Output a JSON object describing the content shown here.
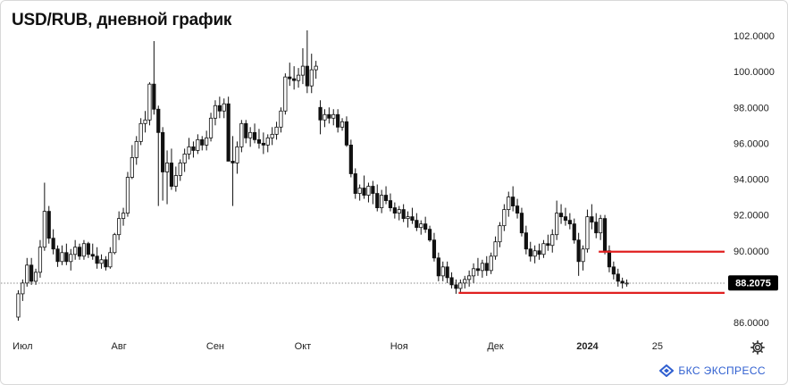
{
  "title": "USD/RUB, дневной график",
  "chart_data": {
    "type": "candlestick",
    "title": "USD/RUB, дневной график",
    "ylim": [
      85.5,
      103.0
    ],
    "y_ticks": [
      "102.0000",
      "100.0000",
      "98.0000",
      "96.0000",
      "94.0000",
      "92.0000",
      "90.0000",
      "86.0000"
    ],
    "y_tick_values": [
      102,
      100,
      98,
      96,
      94,
      92,
      90,
      86
    ],
    "x_ticks": [
      {
        "label": "Июл",
        "index": 1,
        "bold": false
      },
      {
        "label": "Авг",
        "index": 23,
        "bold": false
      },
      {
        "label": "Сен",
        "index": 45,
        "bold": false
      },
      {
        "label": "Окт",
        "index": 65,
        "bold": false
      },
      {
        "label": "Ноя",
        "index": 87,
        "bold": false
      },
      {
        "label": "Дек",
        "index": 109,
        "bold": false
      },
      {
        "label": "2024",
        "index": 130,
        "bold": true
      },
      {
        "label": "25",
        "index": 146,
        "bold": false
      }
    ],
    "grid": false,
    "last_price": 88.2075,
    "last_price_label": "88.2075",
    "colors": {
      "up": "#ffffff",
      "down": "#111111",
      "wick": "#111111",
      "levels": "#e02020",
      "price_label_bg": "#000000"
    },
    "horizontal_levels": [
      {
        "value": 89.95,
        "from_index": 133,
        "to_index": 146
      },
      {
        "value": 87.65,
        "from_index": 101,
        "to_index": 146
      }
    ],
    "candles": [
      [
        86.3,
        87.8,
        86.1,
        87.6
      ],
      [
        87.6,
        88.4,
        87.2,
        88.2
      ],
      [
        88.2,
        89.6,
        88.0,
        89.2
      ],
      [
        89.2,
        89.6,
        88.1,
        88.3
      ],
      [
        88.3,
        89.0,
        88.1,
        88.8
      ],
      [
        88.8,
        90.6,
        88.5,
        90.2
      ],
      [
        90.2,
        93.8,
        90.0,
        92.2
      ],
      [
        92.2,
        92.5,
        90.4,
        90.7
      ],
      [
        90.7,
        91.2,
        89.8,
        90.1
      ],
      [
        90.1,
        90.3,
        89.1,
        89.4
      ],
      [
        89.4,
        90.3,
        89.2,
        89.9
      ],
      [
        89.9,
        90.4,
        89.2,
        89.4
      ],
      [
        89.4,
        90.1,
        88.9,
        89.8
      ],
      [
        89.8,
        90.6,
        89.5,
        90.2
      ],
      [
        90.2,
        90.4,
        89.5,
        89.7
      ],
      [
        89.7,
        90.6,
        89.5,
        90.4
      ],
      [
        90.4,
        90.5,
        89.6,
        89.8
      ],
      [
        89.8,
        90.4,
        89.5,
        89.7
      ],
      [
        89.7,
        90.2,
        89.0,
        89.3
      ],
      [
        89.3,
        89.8,
        89.0,
        89.5
      ],
      [
        89.5,
        89.7,
        88.9,
        89.1
      ],
      [
        89.1,
        90.2,
        89.0,
        89.9
      ],
      [
        89.9,
        91.0,
        89.8,
        90.9
      ],
      [
        90.9,
        92.2,
        90.6,
        91.8
      ],
      [
        91.8,
        92.4,
        91.4,
        92.1
      ],
      [
        92.1,
        94.4,
        91.9,
        94.1
      ],
      [
        94.1,
        95.9,
        94.0,
        95.2
      ],
      [
        95.2,
        96.4,
        94.8,
        96.1
      ],
      [
        96.1,
        97.4,
        95.9,
        97.1
      ],
      [
        97.1,
        97.8,
        96.6,
        97.3
      ],
      [
        97.3,
        99.4,
        97.0,
        99.3
      ],
      [
        99.3,
        101.7,
        97.6,
        97.9
      ],
      [
        97.9,
        98.1,
        92.5,
        96.6
      ],
      [
        96.6,
        96.9,
        92.8,
        94.4
      ],
      [
        94.4,
        95.6,
        92.6,
        94.9
      ],
      [
        94.9,
        95.7,
        93.4,
        93.6
      ],
      [
        93.6,
        94.7,
        93.3,
        94.2
      ],
      [
        94.2,
        95.1,
        93.9,
        94.9
      ],
      [
        94.9,
        95.7,
        94.4,
        95.4
      ],
      [
        95.4,
        96.3,
        95.1,
        95.8
      ],
      [
        95.8,
        96.1,
        95.2,
        95.6
      ],
      [
        95.6,
        96.5,
        95.4,
        96.2
      ],
      [
        96.2,
        96.4,
        95.6,
        95.9
      ],
      [
        95.9,
        96.7,
        95.6,
        96.3
      ],
      [
        96.3,
        97.7,
        96.1,
        97.4
      ],
      [
        97.4,
        98.4,
        97.0,
        98.1
      ],
      [
        98.1,
        98.6,
        97.4,
        97.8
      ],
      [
        97.8,
        98.5,
        97.4,
        98.2
      ],
      [
        98.2,
        98.6,
        95.0,
        95.0
      ],
      [
        95.0,
        96.4,
        92.5,
        94.9
      ],
      [
        94.9,
        96.1,
        94.3,
        95.8
      ],
      [
        95.8,
        97.3,
        95.5,
        97.1
      ],
      [
        97.1,
        97.3,
        96.0,
        96.3
      ],
      [
        96.3,
        96.9,
        95.8,
        96.6
      ],
      [
        96.6,
        97.1,
        96.0,
        96.2
      ],
      [
        96.2,
        96.8,
        95.7,
        96.0
      ],
      [
        96.0,
        96.6,
        95.4,
        95.9
      ],
      [
        95.9,
        96.5,
        95.5,
        96.3
      ],
      [
        96.3,
        96.9,
        95.9,
        96.5
      ],
      [
        96.5,
        97.2,
        96.2,
        96.9
      ],
      [
        96.9,
        98.0,
        96.6,
        97.8
      ],
      [
        97.8,
        99.9,
        97.6,
        99.7
      ],
      [
        99.7,
        100.5,
        99.2,
        99.6
      ],
      [
        99.6,
        100.3,
        99.0,
        99.5
      ],
      [
        99.5,
        100.2,
        99.1,
        99.8
      ],
      [
        99.8,
        101.3,
        99.3,
        100.3
      ],
      [
        100.3,
        102.3,
        98.8,
        99.2
      ],
      [
        99.2,
        101.0,
        98.8,
        100.1
      ],
      [
        100.1,
        100.6,
        99.6,
        100.3
      ],
      [
        98.0,
        98.4,
        96.5,
        97.3
      ],
      [
        97.3,
        97.9,
        96.9,
        97.6
      ],
      [
        97.6,
        98.0,
        97.1,
        97.4
      ],
      [
        97.4,
        97.9,
        97.0,
        97.6
      ],
      [
        97.6,
        97.9,
        96.6,
        96.9
      ],
      [
        96.9,
        97.4,
        96.7,
        97.2
      ],
      [
        97.2,
        97.5,
        95.8,
        95.9
      ],
      [
        95.9,
        96.2,
        94.1,
        94.3
      ],
      [
        94.3,
        94.6,
        92.9,
        93.2
      ],
      [
        93.2,
        93.7,
        92.8,
        93.5
      ],
      [
        93.5,
        94.2,
        92.9,
        93.1
      ],
      [
        93.1,
        93.8,
        92.7,
        93.6
      ],
      [
        93.6,
        93.9,
        92.6,
        93.2
      ],
      [
        93.2,
        93.7,
        92.2,
        92.4
      ],
      [
        92.4,
        93.4,
        92.1,
        93.1
      ],
      [
        93.1,
        93.6,
        92.6,
        92.8
      ],
      [
        92.8,
        93.2,
        92.2,
        92.4
      ],
      [
        92.4,
        92.7,
        91.8,
        92.1
      ],
      [
        92.1,
        92.5,
        91.7,
        92.3
      ],
      [
        92.3,
        92.6,
        91.6,
        91.8
      ],
      [
        91.8,
        92.2,
        91.3,
        91.9
      ],
      [
        91.9,
        92.4,
        91.5,
        91.7
      ],
      [
        91.7,
        92.1,
        91.1,
        91.3
      ],
      [
        91.3,
        91.7,
        90.9,
        91.5
      ],
      [
        91.5,
        91.9,
        91.0,
        91.2
      ],
      [
        91.2,
        91.4,
        90.5,
        90.6
      ],
      [
        90.6,
        91.0,
        89.4,
        89.6
      ],
      [
        89.6,
        89.9,
        88.3,
        88.6
      ],
      [
        88.6,
        89.4,
        88.3,
        89.1
      ],
      [
        89.1,
        89.4,
        88.2,
        88.5
      ],
      [
        88.5,
        88.8,
        87.9,
        88.1
      ],
      [
        88.1,
        88.4,
        87.6,
        87.9
      ],
      [
        87.9,
        88.4,
        87.6,
        88.2
      ],
      [
        88.2,
        88.6,
        87.9,
        88.4
      ],
      [
        88.4,
        88.9,
        88.0,
        88.6
      ],
      [
        88.6,
        89.3,
        88.2,
        89.0
      ],
      [
        89.0,
        89.6,
        88.6,
        88.9
      ],
      [
        88.9,
        89.5,
        88.5,
        89.3
      ],
      [
        89.3,
        89.7,
        88.6,
        88.9
      ],
      [
        88.9,
        89.9,
        88.7,
        89.7
      ],
      [
        89.7,
        90.8,
        89.5,
        90.5
      ],
      [
        90.5,
        91.6,
        90.2,
        91.4
      ],
      [
        91.4,
        92.6,
        91.1,
        92.3
      ],
      [
        92.3,
        93.3,
        91.9,
        93.0
      ],
      [
        93.0,
        93.6,
        92.2,
        92.5
      ],
      [
        92.5,
        92.9,
        91.8,
        92.1
      ],
      [
        92.1,
        92.4,
        90.8,
        91.0
      ],
      [
        91.0,
        91.4,
        89.8,
        90.1
      ],
      [
        90.1,
        90.5,
        89.4,
        89.7
      ],
      [
        89.7,
        90.3,
        89.3,
        90.0
      ],
      [
        90.0,
        90.4,
        89.5,
        89.8
      ],
      [
        89.8,
        90.6,
        89.6,
        90.4
      ],
      [
        90.4,
        90.9,
        90.0,
        90.3
      ],
      [
        90.3,
        91.2,
        89.9,
        90.9
      ],
      [
        90.9,
        92.8,
        90.6,
        92.1
      ],
      [
        92.1,
        92.6,
        91.5,
        91.9
      ],
      [
        91.9,
        92.4,
        91.4,
        91.7
      ],
      [
        91.7,
        92.1,
        91.2,
        91.5
      ],
      [
        91.5,
        91.8,
        90.4,
        90.6
      ],
      [
        90.6,
        91.0,
        88.6,
        89.4
      ],
      [
        89.4,
        90.3,
        88.9,
        90.1
      ],
      [
        90.1,
        92.3,
        89.9,
        91.9
      ],
      [
        91.9,
        92.6,
        91.2,
        91.6
      ],
      [
        91.6,
        92.1,
        90.7,
        91.0
      ],
      [
        91.0,
        92.0,
        90.6,
        91.8
      ],
      [
        91.8,
        92.0,
        89.8,
        90.0
      ],
      [
        90.0,
        90.3,
        88.8,
        89.1
      ],
      [
        89.1,
        89.4,
        88.4,
        88.7
      ],
      [
        88.7,
        89.0,
        88.0,
        88.3
      ],
      [
        88.3,
        88.5,
        87.9,
        88.2
      ],
      [
        88.2,
        88.4,
        88.0,
        88.2
      ]
    ]
  },
  "toolbar": {
    "settings_icon": "gear-icon"
  },
  "brand": {
    "text": "БКС ЭКСПРЕСС",
    "icon": "bks-logo-icon"
  }
}
